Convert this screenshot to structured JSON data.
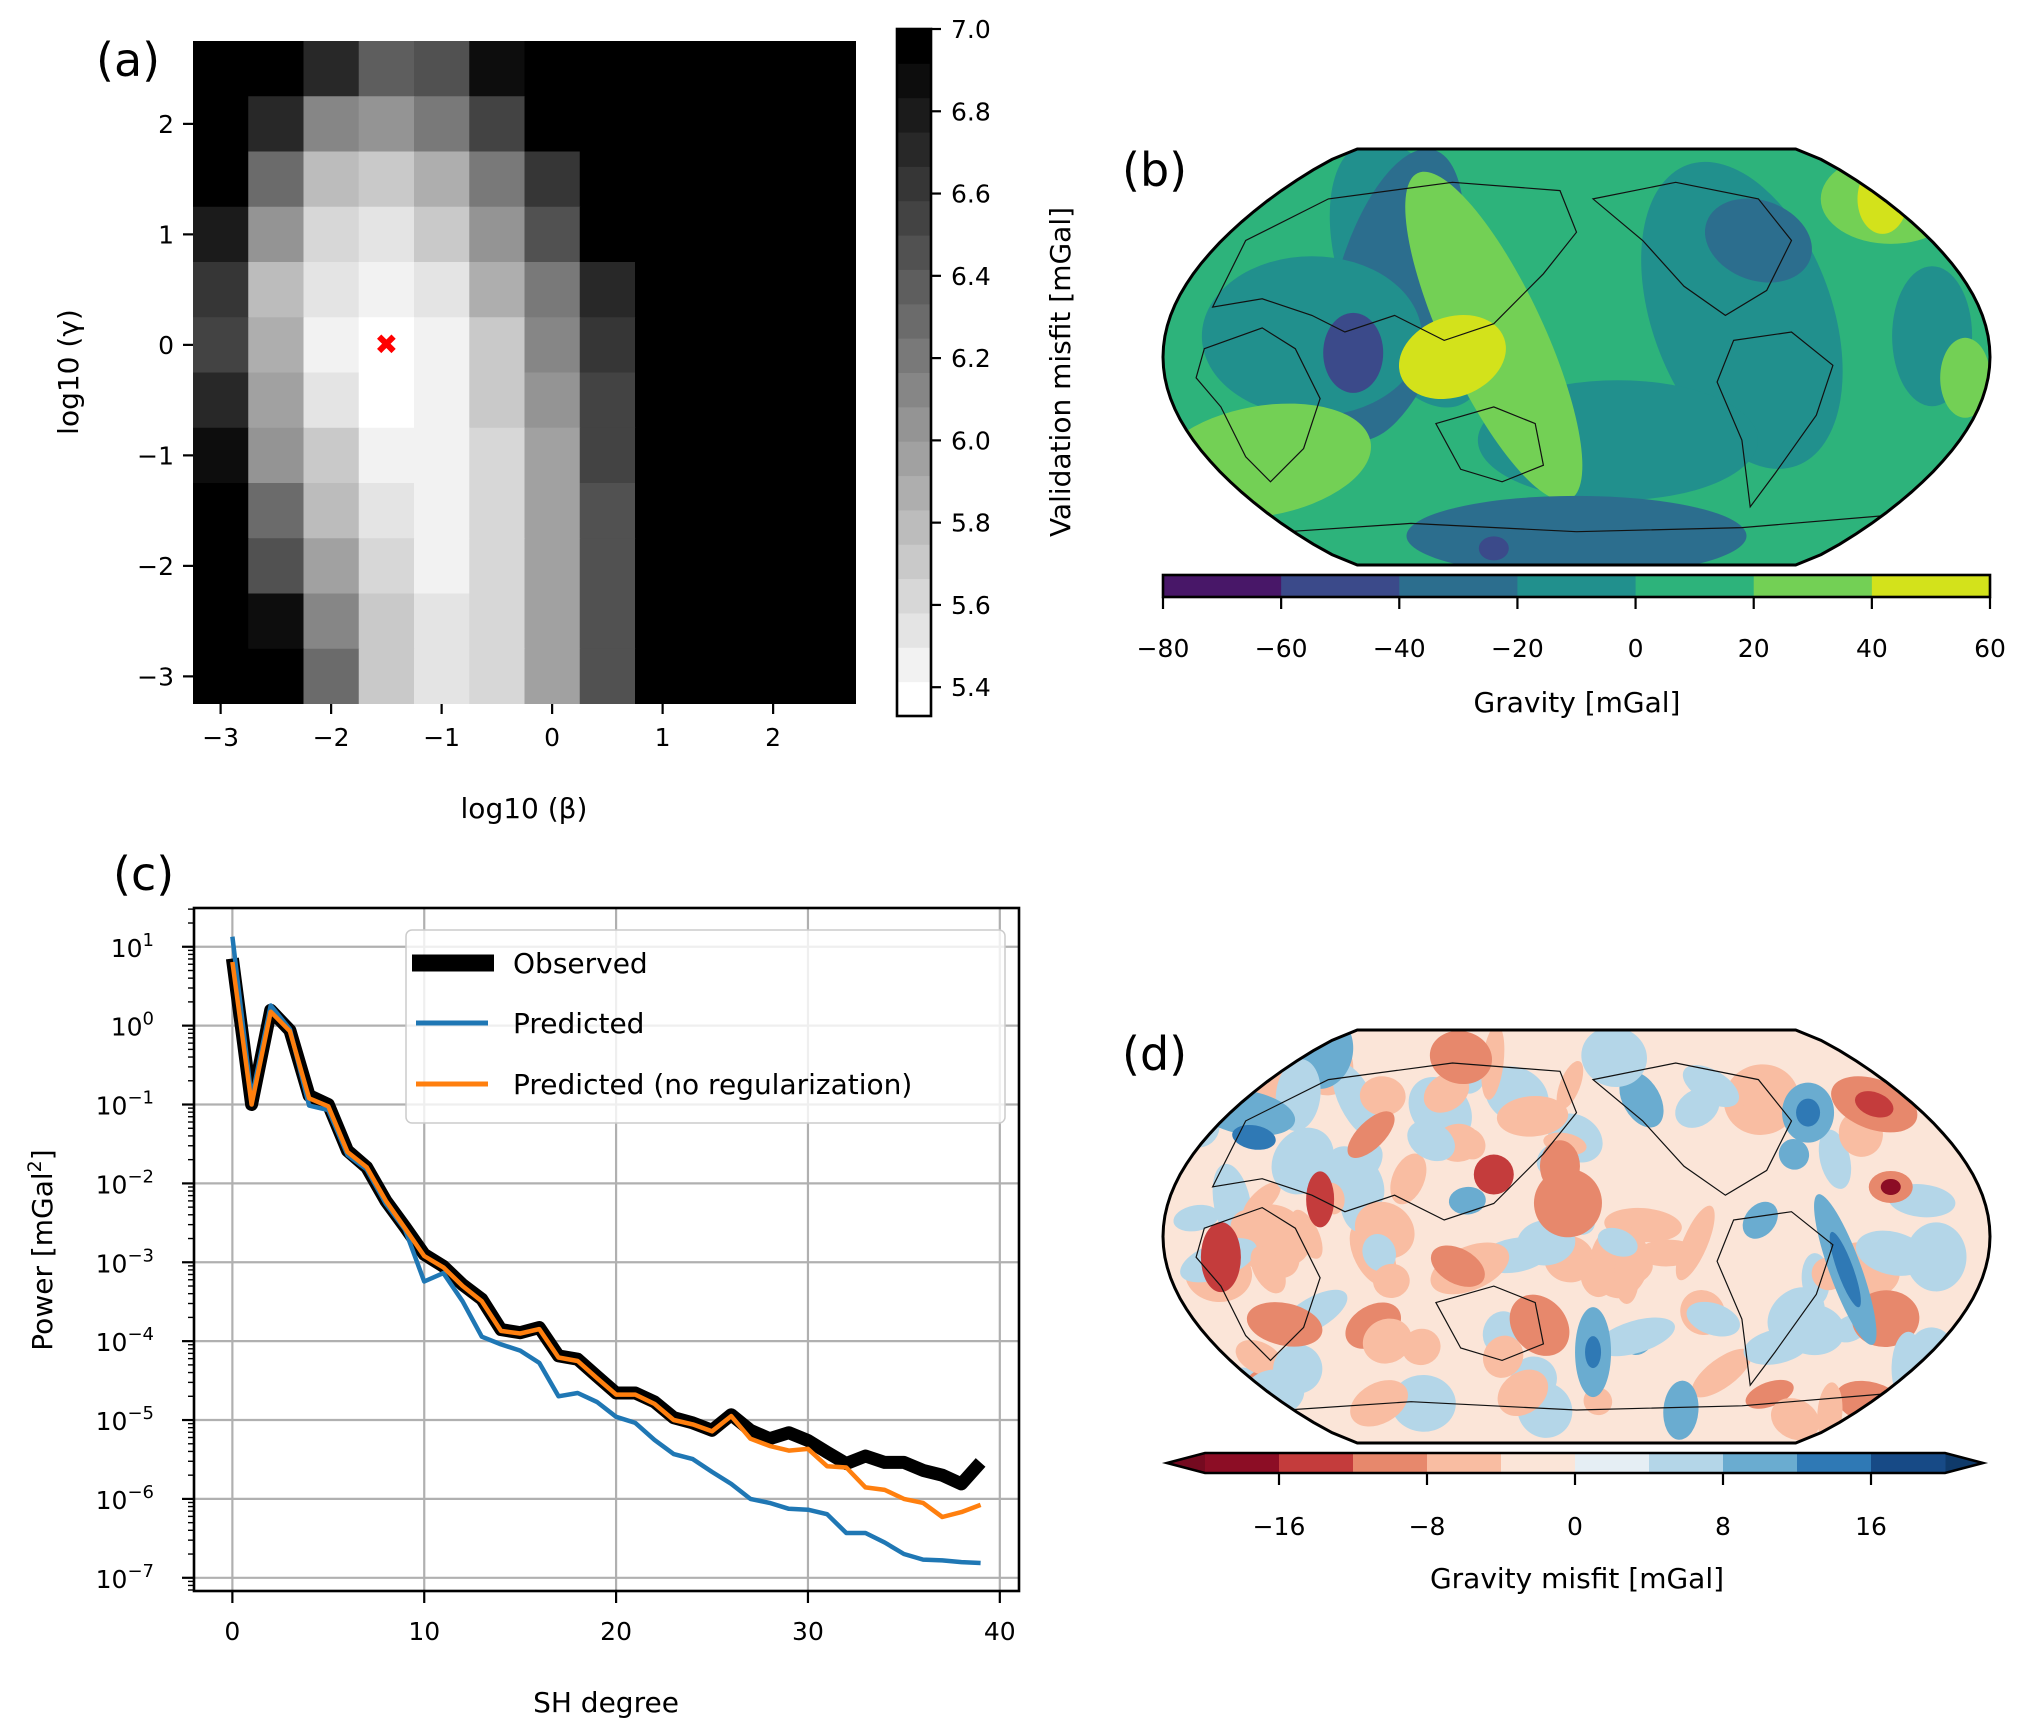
{
  "chart_data": [
    {
      "panel": "(a)",
      "type": "heatmap",
      "xlabel": "log10 (β)",
      "ylabel": "log10 (γ)",
      "x_centers": [
        -3,
        -2.5,
        -2,
        -1.5,
        -1,
        -0.5,
        0,
        0.5,
        1,
        1.5,
        2,
        2.5
      ],
      "y_centers": [
        2.5,
        2,
        1.5,
        1,
        0.5,
        0,
        -0.5,
        -1,
        -1.5,
        -2,
        -2.5,
        -3
      ],
      "xlim": [
        -3.25,
        2.75
      ],
      "ylim": [
        -3.25,
        2.75
      ],
      "xticks": [
        -3,
        -2,
        -1,
        0,
        1,
        2
      ],
      "xtick_labels": [
        "−3",
        "−2",
        "−1",
        "0",
        "1",
        "2"
      ],
      "yticks": [
        2,
        1,
        0,
        -1,
        -2,
        -3
      ],
      "ytick_labels": [
        "2",
        "1",
        "0",
        "−1",
        "−2",
        "−3"
      ],
      "values": [
        [
          7.0,
          7.0,
          6.71,
          6.37,
          6.46,
          6.87,
          7.0,
          7.0,
          7.0,
          7.0,
          7.0,
          7.0
        ],
        [
          7.0,
          6.71,
          6.12,
          6.04,
          6.21,
          6.54,
          7.0,
          7.0,
          7.0,
          7.0,
          7.0,
          7.0
        ],
        [
          7.0,
          6.29,
          5.79,
          5.71,
          5.87,
          6.21,
          6.62,
          7.0,
          7.0,
          7.0,
          7.0,
          7.0
        ],
        [
          6.79,
          6.04,
          5.62,
          5.54,
          5.71,
          6.04,
          6.46,
          7.0,
          7.0,
          7.0,
          7.0,
          7.0
        ],
        [
          6.62,
          5.79,
          5.54,
          5.46,
          5.54,
          5.87,
          6.21,
          6.71,
          7.0,
          7.0,
          7.0,
          7.0
        ],
        [
          6.54,
          5.87,
          5.46,
          5.37,
          5.46,
          5.71,
          6.12,
          6.62,
          7.0,
          7.0,
          7.0,
          7.0
        ],
        [
          6.71,
          5.96,
          5.54,
          5.37,
          5.46,
          5.71,
          6.04,
          6.54,
          7.0,
          7.0,
          7.0,
          7.0
        ],
        [
          6.87,
          6.04,
          5.71,
          5.46,
          5.46,
          5.62,
          5.96,
          6.54,
          7.0,
          7.0,
          7.0,
          7.0
        ],
        [
          7.0,
          6.29,
          5.79,
          5.54,
          5.46,
          5.62,
          5.96,
          6.46,
          7.0,
          7.0,
          7.0,
          7.0
        ],
        [
          7.0,
          6.46,
          5.96,
          5.62,
          5.46,
          5.62,
          5.96,
          6.46,
          7.0,
          7.0,
          7.0,
          7.0
        ],
        [
          7.0,
          6.87,
          6.12,
          5.71,
          5.54,
          5.62,
          5.96,
          6.46,
          7.0,
          7.0,
          7.0,
          7.0
        ],
        [
          7.0,
          7.0,
          6.29,
          5.71,
          5.54,
          5.62,
          5.96,
          6.46,
          7.0,
          7.0,
          7.0,
          7.0
        ]
      ],
      "best_marker": {
        "x": -1.5,
        "y": 0,
        "symbol": "✖",
        "color": "#ff0000"
      },
      "colorbar": {
        "label": "Validation misfit [mGal]",
        "range": [
          5.33,
          7.0
        ],
        "levels": 20,
        "ticks": [
          7.0,
          6.8,
          6.6,
          6.4,
          6.2,
          6.0,
          5.8,
          5.6,
          5.4
        ],
        "tick_labels": [
          "7.0",
          "6.8",
          "6.6",
          "6.4",
          "6.2",
          "6.0",
          "5.8",
          "5.6",
          "5.4"
        ],
        "colormap": "gray_r"
      }
    },
    {
      "panel": "(b)",
      "type": "map",
      "projection": "Robinson",
      "description": "Global predicted gravity field, filled contours",
      "colorbar": {
        "label": "Gravity [mGal]",
        "boundaries": [
          -80,
          -60,
          -40,
          -20,
          0,
          20,
          40,
          60
        ],
        "tick_labels": [
          "−80",
          "−60",
          "−40",
          "−20",
          "0",
          "20",
          "40",
          "60"
        ],
        "colors": [
          "#481768",
          "#3b4a8a",
          "#2c6e8e",
          "#21908d",
          "#2db37b",
          "#73d055",
          "#d3e21b"
        ]
      }
    },
    {
      "panel": "(c)",
      "type": "line",
      "xlabel": "SH degree",
      "ylabel": "Power [mGal²]",
      "yscale": "log",
      "xlim": [
        -2,
        41
      ],
      "ylim": [
        6.8e-08,
        31
      ],
      "grid": true,
      "xticks": [
        0,
        10,
        20,
        30,
        40
      ],
      "xtick_labels": [
        "0",
        "10",
        "20",
        "30",
        "40"
      ],
      "yticks_exp": [
        1,
        0,
        -1,
        -2,
        -3,
        -4,
        -5,
        -6,
        -7
      ],
      "legend_position": "top-right",
      "x": [
        0,
        1,
        2,
        3,
        4,
        5,
        6,
        7,
        8,
        9,
        10,
        11,
        12,
        13,
        14,
        15,
        16,
        17,
        18,
        19,
        20,
        21,
        22,
        23,
        24,
        25,
        26,
        27,
        28,
        29,
        30,
        31,
        32,
        33,
        34,
        35,
        36,
        37,
        38,
        39
      ],
      "series": [
        {
          "name": "Observed",
          "color": "#000000",
          "values": [
            7.1,
            0.1,
            1.57,
            0.87,
            0.13,
            0.1,
            0.026,
            0.016,
            0.006,
            0.0028,
            0.00126,
            0.00089,
            0.00052,
            0.00034,
            0.00014,
            0.000128,
            0.000149,
            6.5e-05,
            5.9e-05,
            3.6e-05,
            2.2e-05,
            2.2e-05,
            1.7e-05,
            1.07e-05,
            9.2e-06,
            7.4e-06,
            1.17e-05,
            7.4e-06,
            5.8e-06,
            6.9e-06,
            5.5e-06,
            3.9e-06,
            2.8e-06,
            3.5e-06,
            2.9e-06,
            2.9e-06,
            2.3e-06,
            2e-06,
            1.55e-06,
            2.9e-06
          ]
        },
        {
          "name": "Predicted",
          "color": "#1f77b4",
          "values": [
            13.4,
            0.12,
            1.8,
            0.9,
            0.097,
            0.085,
            0.023,
            0.015,
            0.0055,
            0.0026,
            0.00057,
            0.00073,
            0.00032,
            0.000114,
            9.1e-05,
            7.6e-05,
            5.3e-05,
            2e-05,
            2.2e-05,
            1.7e-05,
            1.1e-05,
            9.2e-06,
            5.6e-06,
            3.7e-06,
            3.2e-06,
            2.2e-06,
            1.55e-06,
            1e-06,
            8.9e-07,
            7.5e-07,
            7.3e-07,
            6.4e-07,
            3.7e-07,
            3.7e-07,
            2.8e-07,
            2e-07,
            1.7e-07,
            1.66e-07,
            1.58e-07,
            1.54e-07
          ]
        },
        {
          "name": "Predicted (no regularization)",
          "color": "#ff7f0e",
          "values": [
            6.4,
            0.1,
            1.5,
            0.85,
            0.12,
            0.095,
            0.025,
            0.016,
            0.006,
            0.0027,
            0.0012,
            0.00086,
            0.0005,
            0.00032,
            0.000135,
            0.000125,
            0.000142,
            6.2e-05,
            5.6e-05,
            3.4e-05,
            2.1e-05,
            2.1e-05,
            1.6e-05,
            1e-05,
            8.8e-06,
            7.2e-06,
            1.12e-05,
            5.8e-06,
            4.7e-06,
            4.1e-06,
            4.3e-06,
            2.6e-06,
            2.5e-06,
            1.4e-06,
            1.3e-06,
            1e-06,
            8.9e-07,
            5.9e-07,
            6.8e-07,
            8.4e-07
          ]
        }
      ]
    },
    {
      "panel": "(d)",
      "type": "map",
      "projection": "Robinson",
      "description": "Global gravity misfit (residual), filled contours",
      "colorbar": {
        "label": "Gravity misfit [mGal]",
        "boundaries": [
          -20,
          -16,
          -12,
          -8,
          -4,
          0,
          4,
          8,
          12,
          16,
          20
        ],
        "extend": "both",
        "ticks": [
          -16,
          -8,
          0,
          8,
          16
        ],
        "tick_labels": [
          "−16",
          "−8",
          "0",
          "8",
          "16"
        ],
        "colors": [
          "#8c0d25",
          "#c43c3c",
          "#e7886c",
          "#f9bda2",
          "#fbe5d8",
          "#e5eef4",
          "#b4d6e8",
          "#6aacd0",
          "#2f79b5",
          "#174a86"
        ],
        "extend_colors": [
          "#750a20",
          "#0f3a6a"
        ]
      }
    }
  ]
}
